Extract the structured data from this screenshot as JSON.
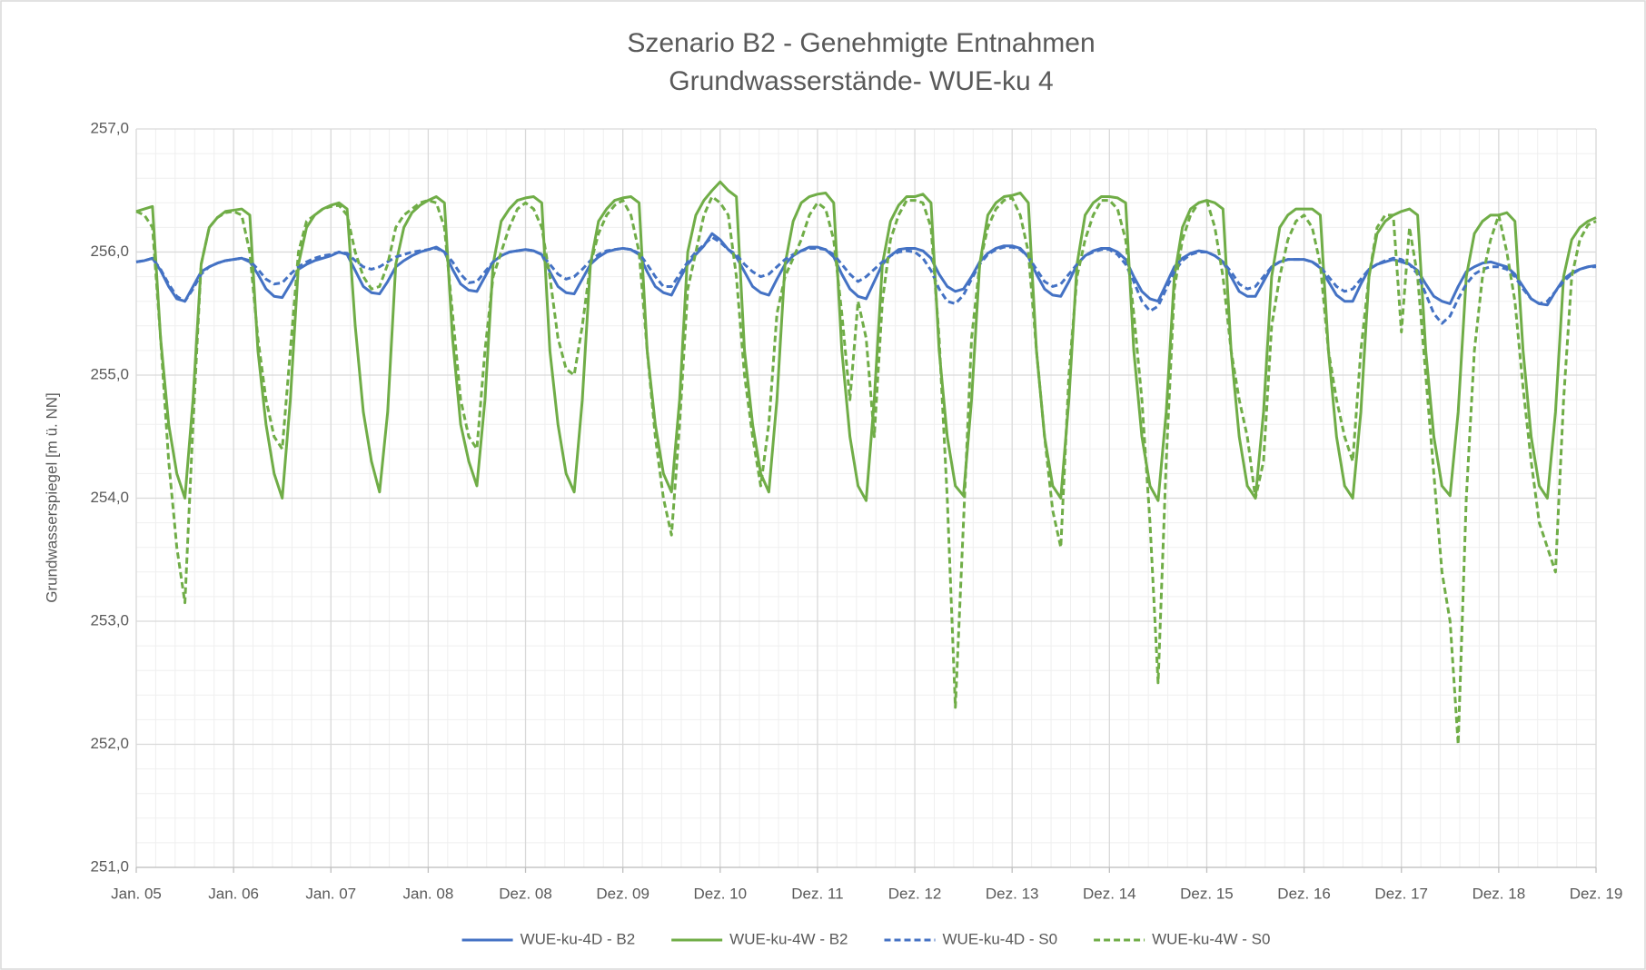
{
  "chart_data": {
    "type": "line",
    "title": "Szenario B2 - Genehmigte Entnahmen",
    "subtitle": "Grundwasserstände- WUE-ku 4",
    "y_label": "Grundwasserspiegel [m ü. NN]",
    "ylim": [
      251,
      257
    ],
    "yticks": [
      {
        "value": 251,
        "label": "251,0"
      },
      {
        "value": 252,
        "label": "252,0"
      },
      {
        "value": 253,
        "label": "253,0"
      },
      {
        "value": 254,
        "label": "254,0"
      },
      {
        "value": 255,
        "label": "255,0"
      },
      {
        "value": 256,
        "label": "256,0"
      },
      {
        "value": 257,
        "label": "257,0"
      }
    ],
    "xlim": [
      0,
      180
    ],
    "xticks": [
      {
        "value": 0,
        "label": "Jan. 05"
      },
      {
        "value": 12,
        "label": "Jan. 06"
      },
      {
        "value": 24,
        "label": "Jan. 07"
      },
      {
        "value": 36,
        "label": "Jan. 08"
      },
      {
        "value": 48,
        "label": "Dez. 08"
      },
      {
        "value": 60,
        "label": "Dez. 09"
      },
      {
        "value": 72,
        "label": "Dez. 10"
      },
      {
        "value": 84,
        "label": "Dez. 11"
      },
      {
        "value": 96,
        "label": "Dez. 12"
      },
      {
        "value": 108,
        "label": "Dez. 13"
      },
      {
        "value": 120,
        "label": "Dez. 14"
      },
      {
        "value": 132,
        "label": "Dez. 15"
      },
      {
        "value": 144,
        "label": "Dez. 16"
      },
      {
        "value": 156,
        "label": "Dez. 17"
      },
      {
        "value": 168,
        "label": "Dez. 18"
      },
      {
        "value": 180,
        "label": "Dez. 19"
      }
    ],
    "grid": true,
    "minor_grid": true,
    "legend": "bottom",
    "x": [
      0,
      1,
      2,
      3,
      4,
      5,
      6,
      7,
      8,
      9,
      10,
      11,
      12,
      13,
      14,
      15,
      16,
      17,
      18,
      19,
      20,
      21,
      22,
      23,
      24,
      25,
      26,
      27,
      28,
      29,
      30,
      31,
      32,
      33,
      34,
      35,
      36,
      37,
      38,
      39,
      40,
      41,
      42,
      43,
      44,
      45,
      46,
      47,
      48,
      49,
      50,
      51,
      52,
      53,
      54,
      55,
      56,
      57,
      58,
      59,
      60,
      61,
      62,
      63,
      64,
      65,
      66,
      67,
      68,
      69,
      70,
      71,
      72,
      73,
      74,
      75,
      76,
      77,
      78,
      79,
      80,
      81,
      82,
      83,
      84,
      85,
      86,
      87,
      88,
      89,
      90,
      91,
      92,
      93,
      94,
      95,
      96,
      97,
      98,
      99,
      100,
      101,
      102,
      103,
      104,
      105,
      106,
      107,
      108,
      109,
      110,
      111,
      112,
      113,
      114,
      115,
      116,
      117,
      118,
      119,
      120,
      121,
      122,
      123,
      124,
      125,
      126,
      127,
      128,
      129,
      130,
      131,
      132,
      133,
      134,
      135,
      136,
      137,
      138,
      139,
      140,
      141,
      142,
      143,
      144,
      145,
      146,
      147,
      148,
      149,
      150,
      151,
      152,
      153,
      154,
      155,
      156,
      157,
      158,
      159,
      160,
      161,
      162,
      163,
      164,
      165,
      166,
      167,
      168,
      169,
      170,
      171,
      172,
      173,
      174,
      175,
      176,
      177,
      178,
      179,
      180
    ],
    "series": [
      {
        "name": "WUE-ku-4D - B2",
        "color": "#4472c4",
        "style": "solid",
        "values": [
          255.92,
          255.93,
          255.95,
          255.85,
          255.72,
          255.62,
          255.6,
          255.72,
          255.84,
          255.88,
          255.91,
          255.93,
          255.94,
          255.95,
          255.92,
          255.82,
          255.7,
          255.64,
          255.63,
          255.74,
          255.86,
          255.9,
          255.93,
          255.95,
          255.97,
          256.0,
          255.98,
          255.85,
          255.72,
          255.67,
          255.66,
          255.76,
          255.88,
          255.93,
          255.97,
          256.0,
          256.02,
          256.04,
          256.0,
          255.86,
          255.74,
          255.69,
          255.68,
          255.8,
          255.92,
          255.97,
          256.0,
          256.01,
          256.02,
          256.01,
          255.98,
          255.84,
          255.72,
          255.67,
          255.66,
          255.78,
          255.9,
          255.96,
          256.0,
          256.02,
          256.03,
          256.02,
          255.98,
          255.84,
          255.72,
          255.67,
          255.65,
          255.78,
          255.9,
          255.98,
          256.05,
          256.15,
          256.1,
          256.02,
          255.96,
          255.84,
          255.72,
          255.67,
          255.65,
          255.78,
          255.9,
          255.97,
          256.01,
          256.04,
          256.04,
          256.02,
          255.96,
          255.82,
          255.7,
          255.64,
          255.62,
          255.76,
          255.9,
          255.97,
          256.02,
          256.03,
          256.03,
          256.01,
          255.95,
          255.82,
          255.72,
          255.68,
          255.7,
          255.8,
          255.92,
          255.99,
          256.03,
          256.05,
          256.05,
          256.03,
          255.96,
          255.82,
          255.7,
          255.65,
          255.64,
          255.76,
          255.9,
          255.97,
          256.01,
          256.03,
          256.03,
          256.0,
          255.94,
          255.8,
          255.68,
          255.62,
          255.6,
          255.74,
          255.88,
          255.95,
          255.99,
          256.01,
          256.0,
          255.97,
          255.92,
          255.8,
          255.68,
          255.64,
          255.64,
          255.76,
          255.88,
          255.92,
          255.94,
          255.94,
          255.94,
          255.92,
          255.87,
          255.76,
          255.65,
          255.6,
          255.6,
          255.74,
          255.86,
          255.9,
          255.92,
          255.94,
          255.92,
          255.9,
          255.85,
          255.74,
          255.64,
          255.6,
          255.58,
          255.72,
          255.84,
          255.88,
          255.91,
          255.92,
          255.9,
          255.88,
          255.82,
          255.72,
          255.62,
          255.58,
          255.57,
          255.68,
          255.78,
          255.83,
          255.86,
          255.88,
          255.89
        ]
      },
      {
        "name": "WUE-ku-4W - B2",
        "color": "#70ad47",
        "style": "solid",
        "values": [
          256.33,
          256.35,
          256.37,
          255.3,
          254.6,
          254.2,
          254.0,
          254.8,
          255.9,
          256.2,
          256.28,
          256.33,
          256.34,
          256.35,
          256.3,
          255.2,
          254.6,
          254.2,
          254.0,
          254.8,
          255.9,
          256.2,
          256.3,
          256.35,
          256.38,
          256.4,
          256.35,
          255.4,
          254.7,
          254.3,
          254.05,
          254.7,
          255.9,
          256.2,
          256.32,
          256.38,
          256.42,
          256.45,
          256.4,
          255.3,
          254.6,
          254.3,
          254.1,
          254.8,
          255.9,
          256.25,
          256.35,
          256.42,
          256.44,
          256.45,
          256.4,
          255.2,
          254.6,
          254.2,
          254.05,
          254.8,
          255.9,
          256.25,
          256.35,
          256.42,
          256.44,
          256.45,
          256.4,
          255.2,
          254.6,
          254.2,
          254.05,
          254.8,
          256.0,
          256.3,
          256.42,
          256.5,
          256.57,
          256.5,
          256.45,
          255.2,
          254.6,
          254.2,
          254.05,
          254.8,
          255.9,
          256.25,
          256.4,
          256.45,
          256.47,
          256.48,
          256.4,
          255.2,
          254.5,
          254.1,
          253.98,
          254.8,
          255.9,
          256.25,
          256.38,
          256.45,
          256.45,
          256.47,
          256.4,
          255.2,
          254.5,
          254.1,
          254.02,
          254.8,
          255.9,
          256.3,
          256.4,
          256.45,
          256.46,
          256.48,
          256.4,
          255.2,
          254.5,
          254.1,
          254.0,
          254.8,
          255.9,
          256.3,
          256.4,
          256.45,
          256.45,
          256.44,
          256.4,
          255.2,
          254.5,
          254.1,
          253.98,
          254.7,
          255.8,
          256.2,
          256.35,
          256.4,
          256.42,
          256.4,
          256.35,
          255.2,
          254.5,
          254.1,
          254.0,
          254.7,
          255.8,
          256.2,
          256.3,
          256.35,
          256.35,
          256.35,
          256.3,
          255.2,
          254.5,
          254.1,
          254.0,
          254.7,
          255.8,
          256.15,
          256.25,
          256.3,
          256.33,
          256.35,
          256.3,
          255.2,
          254.5,
          254.1,
          254.02,
          254.7,
          255.8,
          256.15,
          256.25,
          256.3,
          256.3,
          256.32,
          256.25,
          255.2,
          254.5,
          254.1,
          254.0,
          254.7,
          255.8,
          256.1,
          256.2,
          256.25,
          256.28
        ]
      },
      {
        "name": "WUE-ku-4D - S0",
        "color": "#4472c4",
        "style": "dashed",
        "values": [
          255.92,
          255.93,
          255.95,
          255.86,
          255.74,
          255.64,
          255.6,
          255.7,
          255.82,
          255.88,
          255.91,
          255.93,
          255.94,
          255.95,
          255.93,
          255.86,
          255.78,
          255.74,
          255.75,
          255.82,
          255.88,
          255.92,
          255.95,
          255.97,
          255.98,
          256.0,
          255.99,
          255.93,
          255.88,
          255.86,
          255.88,
          255.92,
          255.96,
          255.98,
          256.0,
          256.01,
          256.02,
          256.03,
          256.0,
          255.92,
          255.82,
          255.75,
          255.76,
          255.84,
          255.92,
          255.97,
          256.0,
          256.01,
          256.02,
          256.01,
          255.98,
          255.9,
          255.82,
          255.78,
          255.8,
          255.86,
          255.93,
          255.98,
          256.01,
          256.02,
          256.03,
          256.02,
          255.99,
          255.9,
          255.8,
          255.72,
          255.72,
          255.82,
          255.92,
          256.0,
          256.06,
          256.12,
          256.08,
          256.02,
          255.98,
          255.9,
          255.84,
          255.8,
          255.82,
          255.88,
          255.94,
          255.98,
          256.01,
          256.03,
          256.03,
          256.02,
          255.98,
          255.9,
          255.82,
          255.76,
          255.8,
          255.86,
          255.92,
          255.97,
          256.0,
          256.01,
          256.0,
          255.95,
          255.85,
          255.7,
          255.6,
          255.58,
          255.65,
          255.78,
          255.9,
          255.98,
          256.02,
          256.04,
          256.04,
          256.02,
          255.96,
          255.86,
          255.76,
          255.72,
          255.74,
          255.82,
          255.9,
          255.97,
          256.0,
          256.02,
          256.02,
          255.98,
          255.9,
          255.76,
          255.6,
          255.52,
          255.56,
          255.7,
          255.84,
          255.93,
          255.98,
          256.0,
          256.0,
          255.97,
          255.92,
          255.84,
          255.74,
          255.7,
          255.72,
          255.8,
          255.88,
          255.92,
          255.94,
          255.94,
          255.94,
          255.92,
          255.88,
          255.8,
          255.72,
          255.68,
          255.7,
          255.78,
          255.86,
          255.9,
          255.93,
          255.95,
          255.94,
          255.9,
          255.82,
          255.66,
          255.5,
          255.42,
          255.48,
          255.62,
          255.74,
          255.82,
          255.86,
          255.88,
          255.88,
          255.86,
          255.8,
          255.7,
          255.62,
          255.58,
          255.6,
          255.68,
          255.76,
          255.82,
          255.86,
          255.88,
          255.88
        ]
      },
      {
        "name": "WUE-ku-4W - S0",
        "color": "#70ad47",
        "style": "dashed",
        "values": [
          256.33,
          256.3,
          256.2,
          255.3,
          254.3,
          253.6,
          253.15,
          254.6,
          255.9,
          256.2,
          256.28,
          256.32,
          256.33,
          256.3,
          256.0,
          255.3,
          254.8,
          254.5,
          254.4,
          255.2,
          256.0,
          256.25,
          256.3,
          256.35,
          256.37,
          256.38,
          256.3,
          256.0,
          255.8,
          255.7,
          255.72,
          255.9,
          256.2,
          256.3,
          256.35,
          256.4,
          256.42,
          256.4,
          256.2,
          255.5,
          254.8,
          254.5,
          254.4,
          255.2,
          255.8,
          256.0,
          256.2,
          256.35,
          256.4,
          256.35,
          256.2,
          255.8,
          255.3,
          255.05,
          255.0,
          255.4,
          255.9,
          256.15,
          256.3,
          256.38,
          256.42,
          256.3,
          256.0,
          255.2,
          254.5,
          254.0,
          253.7,
          254.6,
          255.7,
          256.0,
          256.3,
          256.45,
          256.4,
          256.3,
          255.8,
          255.0,
          254.5,
          254.1,
          254.6,
          255.5,
          255.8,
          255.95,
          256.1,
          256.3,
          256.4,
          256.35,
          256.1,
          255.5,
          254.8,
          255.6,
          255.3,
          254.5,
          255.6,
          256.1,
          256.3,
          256.42,
          256.42,
          256.4,
          256.2,
          255.3,
          254.0,
          252.3,
          253.8,
          255.3,
          255.9,
          256.2,
          256.35,
          256.42,
          256.44,
          256.3,
          256.0,
          255.2,
          254.5,
          253.9,
          253.6,
          255.0,
          255.8,
          256.1,
          256.3,
          256.42,
          256.42,
          256.35,
          256.1,
          255.5,
          254.8,
          253.8,
          252.5,
          254.3,
          255.7,
          256.1,
          256.3,
          256.4,
          256.42,
          256.2,
          255.8,
          255.2,
          254.8,
          254.5,
          254.0,
          254.3,
          255.4,
          255.8,
          256.1,
          256.25,
          256.3,
          256.2,
          255.9,
          255.2,
          254.8,
          254.5,
          254.3,
          255.2,
          255.8,
          256.2,
          256.3,
          256.3,
          255.35,
          256.2,
          255.8,
          255.0,
          254.2,
          253.4,
          253.0,
          252.0,
          254.0,
          255.2,
          255.8,
          256.1,
          256.3,
          256.0,
          255.6,
          254.9,
          254.3,
          253.8,
          253.6,
          253.4,
          254.8,
          255.8,
          256.1,
          256.22,
          256.25
        ]
      }
    ]
  }
}
